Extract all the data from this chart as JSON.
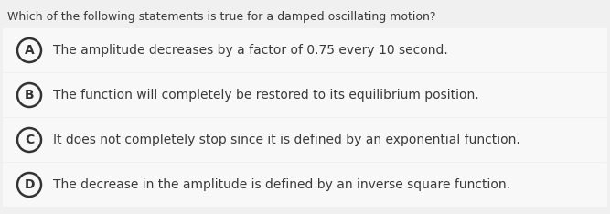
{
  "question": "Which of the following statements is true for a damped oscillating motion?",
  "options": [
    {
      "label": "A",
      "text": "The amplitude decreases by a factor of 0.75 every 10 second."
    },
    {
      "label": "B",
      "text": "The function will completely be restored to its equilibrium position."
    },
    {
      "label": "C",
      "text": "It does not completely stop since it is defined by an exponential function."
    },
    {
      "label": "D",
      "text": "The decrease in the amplitude is defined by an inverse square function."
    }
  ],
  "bg_color": "#f0f0f0",
  "row_color": "#f8f8f8",
  "text_color": "#3a3a3a",
  "question_color": "#3a3a3a",
  "circle_edge_color": "#333333",
  "circle_face_color": "#f8f8f8",
  "label_color": "#333333",
  "question_fontsize": 9.0,
  "option_fontsize": 10.0,
  "label_fontsize": 10.0
}
